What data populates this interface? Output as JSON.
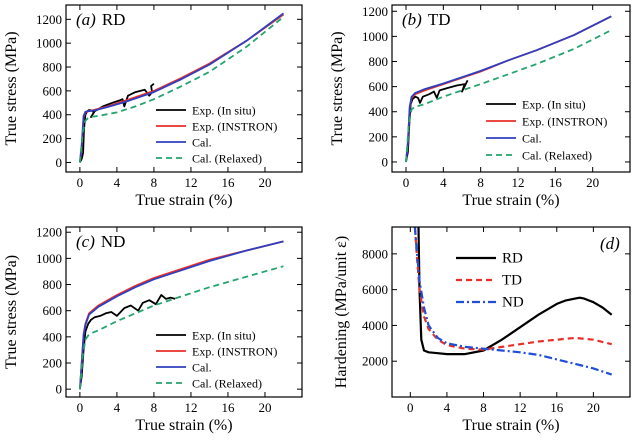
{
  "colors": {
    "exp_insitu": "#000000",
    "exp_instron": "#e8302a",
    "cal": "#2f3fbf",
    "cal_relaxed": "#25a46e",
    "rd": "#000000",
    "td": "#e8302a",
    "nd": "#1f4fd6"
  },
  "legend_abc": [
    "Exp. (In situ)",
    "Exp. (INSTRON)",
    "Cal.",
    "Cal. (Relaxed)"
  ],
  "chart_data": [
    {
      "id": "a",
      "type": "line",
      "label_letter": "(a)",
      "label_text": "RD",
      "xlabel": "True strain (%)",
      "ylabel": "True stress (MPa)",
      "xlim": [
        -1.5,
        24
      ],
      "ylim": [
        -80,
        1320
      ],
      "xticks": [
        0,
        4,
        8,
        12,
        16,
        20
      ],
      "yticks": [
        0,
        200,
        400,
        600,
        800,
        1000,
        1200
      ],
      "series": [
        {
          "name": "Exp. (In situ)",
          "role": "exp_insitu",
          "x": [
            0,
            0.2,
            0.35,
            0.45,
            0.6,
            0.8,
            1.0,
            1.3,
            1.5,
            1.2,
            1.6,
            2.5,
            3.5,
            4.3,
            4.6,
            4.8,
            5.2,
            6.0,
            7.0,
            7.5,
            7.8,
            7.7,
            8.0
          ],
          "y": [
            0,
            30,
            80,
            280,
            400,
            430,
            440,
            435,
            420,
            380,
            430,
            470,
            500,
            520,
            530,
            470,
            560,
            590,
            610,
            560,
            590,
            640,
            660
          ]
        },
        {
          "name": "Exp. (INSTRON)",
          "role": "exp_instron",
          "x": [
            0,
            0.2,
            0.4,
            0.6,
            0.9,
            1.5,
            3,
            5,
            8,
            11,
            14,
            18,
            22
          ],
          "y": [
            0,
            120,
            380,
            420,
            430,
            440,
            470,
            520,
            600,
            710,
            830,
            1020,
            1240
          ]
        },
        {
          "name": "Cal.",
          "role": "cal",
          "x": [
            0,
            0.2,
            0.4,
            0.6,
            0.9,
            1.5,
            3,
            5,
            8,
            11,
            14,
            18,
            22
          ],
          "y": [
            0,
            150,
            390,
            425,
            430,
            435,
            465,
            510,
            590,
            700,
            820,
            1020,
            1250
          ]
        },
        {
          "name": "Cal. (Relaxed)",
          "role": "cal_relaxed",
          "x": [
            0,
            0.3,
            0.6,
            1.0,
            2,
            4,
            6,
            8,
            11,
            14,
            18,
            22
          ],
          "y": [
            0,
            250,
            350,
            380,
            390,
            420,
            470,
            530,
            640,
            760,
            970,
            1220
          ]
        }
      ]
    },
    {
      "id": "b",
      "type": "line",
      "label_letter": "(b)",
      "label_text": "TD",
      "xlabel": "True strain (%)",
      "ylabel": "True stress (MPa)",
      "xlim": [
        -1.5,
        24
      ],
      "ylim": [
        -80,
        1250
      ],
      "xticks": [
        0,
        4,
        8,
        12,
        16,
        20
      ],
      "yticks": [
        0,
        200,
        400,
        600,
        800,
        1000,
        1200
      ],
      "series": [
        {
          "name": "Exp. (In situ)",
          "role": "exp_insitu",
          "x": [
            0,
            0.2,
            0.35,
            0.5,
            0.7,
            1.0,
            1.3,
            1.5,
            1.8,
            2.5,
            3.0,
            3.3,
            3.6,
            4.5,
            5.5,
            6.3,
            6.0,
            6.6
          ],
          "y": [
            0,
            80,
            300,
            460,
            500,
            520,
            510,
            470,
            520,
            540,
            560,
            510,
            570,
            590,
            610,
            620,
            560,
            650
          ]
        },
        {
          "name": "Exp. (INSTRON)",
          "role": "exp_instron",
          "x": [
            0,
            0.2,
            0.4,
            0.6,
            1.0,
            2,
            4,
            6,
            8,
            11,
            14,
            18,
            22
          ],
          "y": [
            0,
            150,
            430,
            510,
            540,
            570,
            620,
            670,
            720,
            810,
            890,
            1010,
            1160
          ]
        },
        {
          "name": "Cal.",
          "role": "cal",
          "x": [
            0,
            0.2,
            0.4,
            0.6,
            1.0,
            2,
            4,
            6,
            8,
            11,
            14,
            18,
            22
          ],
          "y": [
            0,
            160,
            440,
            520,
            550,
            580,
            625,
            675,
            725,
            810,
            890,
            1010,
            1160
          ]
        },
        {
          "name": "Cal. (Relaxed)",
          "role": "cal_relaxed",
          "x": [
            0,
            0.3,
            0.6,
            1.0,
            2,
            4,
            6,
            8,
            11,
            14,
            18,
            22
          ],
          "y": [
            0,
            300,
            420,
            440,
            460,
            520,
            570,
            620,
            700,
            780,
            900,
            1050
          ]
        }
      ]
    },
    {
      "id": "c",
      "type": "line",
      "label_letter": "(c)",
      "label_text": "ND",
      "xlabel": "True strain (%)",
      "ylabel": "True stress (MPa)",
      "xlim": [
        -1.5,
        24
      ],
      "ylim": [
        -60,
        1240
      ],
      "xticks": [
        0,
        4,
        8,
        12,
        16,
        20
      ],
      "yticks": [
        0,
        200,
        400,
        600,
        800,
        1000,
        1200
      ],
      "series": [
        {
          "name": "Exp. (In situ)",
          "role": "exp_insitu",
          "x": [
            0,
            0.2,
            0.4,
            0.6,
            0.9,
            1.2,
            1.6,
            2.2,
            2.8,
            3.4,
            4.0,
            4.8,
            5.5,
            6.3,
            6.8,
            7.5,
            8.2,
            8.8,
            9.3,
            9.8,
            10.3
          ],
          "y": [
            0,
            100,
            300,
            440,
            500,
            530,
            550,
            560,
            580,
            590,
            560,
            620,
            640,
            600,
            660,
            680,
            650,
            720,
            690,
            700,
            690
          ]
        },
        {
          "name": "Exp. (INSTRON)",
          "role": "exp_instron",
          "x": [
            0,
            0.2,
            0.4,
            0.6,
            1.0,
            2,
            4,
            6,
            8,
            11,
            14,
            18,
            22
          ],
          "y": [
            0,
            200,
            420,
            500,
            580,
            640,
            720,
            790,
            850,
            920,
            990,
            1060,
            1130
          ]
        },
        {
          "name": "Cal.",
          "role": "cal",
          "x": [
            0,
            0.2,
            0.4,
            0.6,
            1.0,
            2,
            4,
            6,
            8,
            11,
            14,
            18,
            22
          ],
          "y": [
            0,
            200,
            410,
            490,
            570,
            630,
            710,
            780,
            840,
            910,
            980,
            1060,
            1130
          ]
        },
        {
          "name": "Cal. (Relaxed)",
          "role": "cal_relaxed",
          "x": [
            0,
            0.3,
            0.6,
            1.0,
            2,
            4,
            6,
            8,
            11,
            14,
            18,
            22
          ],
          "y": [
            0,
            250,
            380,
            420,
            450,
            520,
            580,
            640,
            710,
            780,
            860,
            940
          ]
        }
      ]
    },
    {
      "id": "d",
      "type": "line",
      "label_letter": "(d)",
      "label_text": "",
      "xlabel": "True strain (%)",
      "ylabel": "Hardening (MPa/unit ε)",
      "xlim": [
        -2,
        24
      ],
      "ylim": [
        0,
        9500
      ],
      "xticks": [
        0,
        4,
        8,
        12,
        16,
        20
      ],
      "yticks": [
        2000,
        4000,
        6000,
        8000
      ],
      "series": [
        {
          "name": "RD",
          "role": "rd",
          "x": [
            0.9,
            1.0,
            1.2,
            1.5,
            2,
            3,
            4,
            6,
            8,
            10,
            12,
            14,
            16,
            17,
            18,
            18.5,
            19,
            20,
            21,
            22
          ],
          "y": [
            9500,
            6000,
            3200,
            2600,
            2500,
            2450,
            2400,
            2400,
            2600,
            3200,
            3900,
            4600,
            5200,
            5400,
            5500,
            5550,
            5500,
            5300,
            5000,
            4600
          ]
        },
        {
          "name": "TD",
          "role": "td",
          "x": [
            0.5,
            0.7,
            1.0,
            1.5,
            2,
            3,
            4,
            6,
            8,
            10,
            12,
            14,
            16,
            18,
            20,
            22
          ],
          "y": [
            9500,
            8000,
            6000,
            4500,
            3800,
            3200,
            2900,
            2700,
            2650,
            2800,
            2950,
            3100,
            3200,
            3300,
            3200,
            2950
          ]
        },
        {
          "name": "ND",
          "role": "nd",
          "x": [
            0.5,
            0.7,
            1.0,
            1.5,
            2,
            3,
            4,
            6,
            8,
            10,
            12,
            14,
            16,
            18,
            20,
            22
          ],
          "y": [
            9500,
            8200,
            6500,
            5000,
            4000,
            3300,
            3000,
            2800,
            2700,
            2600,
            2500,
            2350,
            2100,
            1850,
            1600,
            1250
          ]
        }
      ]
    }
  ]
}
